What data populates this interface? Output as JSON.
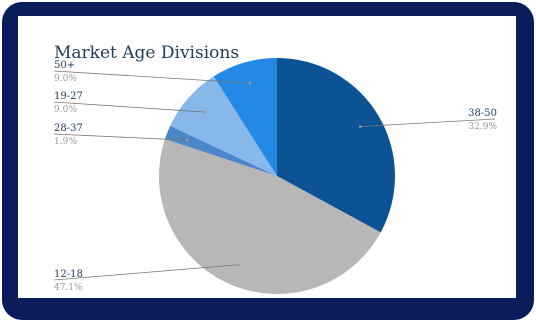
{
  "chart_data": {
    "type": "pie",
    "title": "Market Age Divisions",
    "slices": [
      {
        "label": "38-50",
        "value": 32.9,
        "pct_label": "32.9%",
        "color": "#0b5394"
      },
      {
        "label": "12-18",
        "value": 47.1,
        "pct_label": "47.1%",
        "color": "#b7b7b7"
      },
      {
        "label": "28-37",
        "value": 1.9,
        "pct_label": "1.9%",
        "color": "#4a86c8"
      },
      {
        "label": "19-27",
        "value": 9.0,
        "pct_label": "9.0%",
        "color": "#88b8ea"
      },
      {
        "label": "50+",
        "value": 9.0,
        "pct_label": "9.0%",
        "color": "#2389e6"
      }
    ],
    "legend": "callout labels"
  },
  "colors": {
    "frame": "#0c1d5e",
    "background": "#ffffff",
    "title": "#1f3a5a",
    "label": "#1f3a5a",
    "pct": "#999999",
    "leader": "#777777"
  }
}
